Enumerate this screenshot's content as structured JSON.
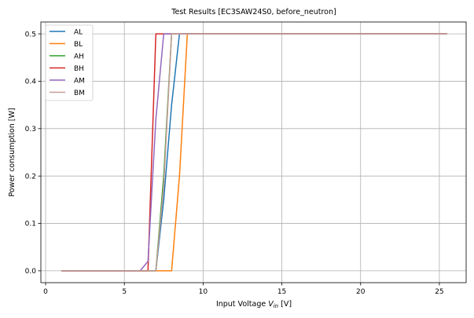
{
  "chart_data": {
    "type": "line",
    "title": "Test Results [EC3SAW24S0, before_neutron]",
    "xlabel_main": "Input Voltage ",
    "xlabel_italic_base": "V",
    "xlabel_italic_sub": "in",
    "xlabel_unit": " [V]",
    "ylabel": "Power consumption [W]",
    "xlim": [
      -0.3,
      26.7
    ],
    "ylim": [
      -0.025,
      0.525
    ],
    "xticks": [
      0,
      5,
      10,
      15,
      20,
      25
    ],
    "xtick_labels": [
      "0",
      "5",
      "10",
      "15",
      "20",
      "25"
    ],
    "yticks": [
      0.0,
      0.1,
      0.2,
      0.3,
      0.4,
      0.5
    ],
    "ytick_labels": [
      "0.0",
      "0.1",
      "0.2",
      "0.3",
      "0.4",
      "0.5"
    ],
    "grid": true,
    "legend_position": "top-left",
    "series": [
      {
        "name": "AL",
        "color": "#1f77b4",
        "x": [
          1,
          2,
          3,
          4,
          5,
          6,
          7,
          7.5,
          8,
          8.5,
          9,
          10,
          12,
          14,
          16,
          18,
          20,
          22,
          24,
          25.5
        ],
        "y": [
          0,
          0,
          0,
          0,
          0,
          0,
          0,
          0.15,
          0.35,
          0.5,
          0.5,
          0.5,
          0.5,
          0.5,
          0.5,
          0.5,
          0.5,
          0.5,
          0.5,
          0.5
        ]
      },
      {
        "name": "BL",
        "color": "#ff7f0e",
        "x": [
          1,
          2,
          3,
          4,
          5,
          6,
          7,
          8,
          8.5,
          9,
          10,
          12,
          14,
          16,
          18,
          20,
          22,
          24,
          25.5
        ],
        "y": [
          0,
          0,
          0,
          0,
          0,
          0,
          0,
          0,
          0.2,
          0.5,
          0.5,
          0.5,
          0.5,
          0.5,
          0.5,
          0.5,
          0.5,
          0.5,
          0.5
        ]
      },
      {
        "name": "AH",
        "color": "#2ca02c",
        "x": [
          1,
          2,
          3,
          4,
          5,
          6,
          7,
          7.5,
          8,
          8.5,
          10,
          12,
          14,
          16,
          18,
          20,
          22,
          24,
          25.5
        ],
        "y": [
          0,
          0,
          0,
          0,
          0,
          0,
          0,
          0.2,
          0.5,
          0.5,
          0.5,
          0.5,
          0.5,
          0.5,
          0.5,
          0.5,
          0.5,
          0.5,
          0.5
        ]
      },
      {
        "name": "BH",
        "color": "#d62728",
        "x": [
          1,
          2,
          3,
          4,
          5,
          6,
          6.5,
          7,
          7.5,
          8,
          10,
          12,
          14,
          16,
          18,
          20,
          22,
          24,
          25.5
        ],
        "y": [
          0,
          0,
          0,
          0,
          0,
          0,
          0,
          0.5,
          0.5,
          0.5,
          0.5,
          0.5,
          0.5,
          0.5,
          0.5,
          0.5,
          0.5,
          0.5,
          0.5
        ]
      },
      {
        "name": "AM",
        "color": "#9467bd",
        "x": [
          1,
          2,
          3,
          4,
          5,
          6,
          6.5,
          7,
          7.5,
          8,
          10,
          12,
          14,
          16,
          18,
          20,
          22,
          24,
          25.5
        ],
        "y": [
          0,
          0,
          0,
          0,
          0,
          0,
          0.02,
          0.32,
          0.5,
          0.5,
          0.5,
          0.5,
          0.5,
          0.5,
          0.5,
          0.5,
          0.5,
          0.5,
          0.5
        ]
      },
      {
        "name": "BM",
        "color": "#c49c94",
        "x": [
          1,
          2,
          3,
          4,
          5,
          6,
          7,
          7.5,
          8,
          8.5,
          10,
          12,
          14,
          16,
          18,
          20,
          22,
          24,
          25.5
        ],
        "y": [
          0,
          0,
          0,
          0,
          0,
          0,
          0,
          0.18,
          0.5,
          0.5,
          0.5,
          0.5,
          0.5,
          0.5,
          0.5,
          0.5,
          0.5,
          0.5,
          0.5
        ]
      }
    ]
  }
}
